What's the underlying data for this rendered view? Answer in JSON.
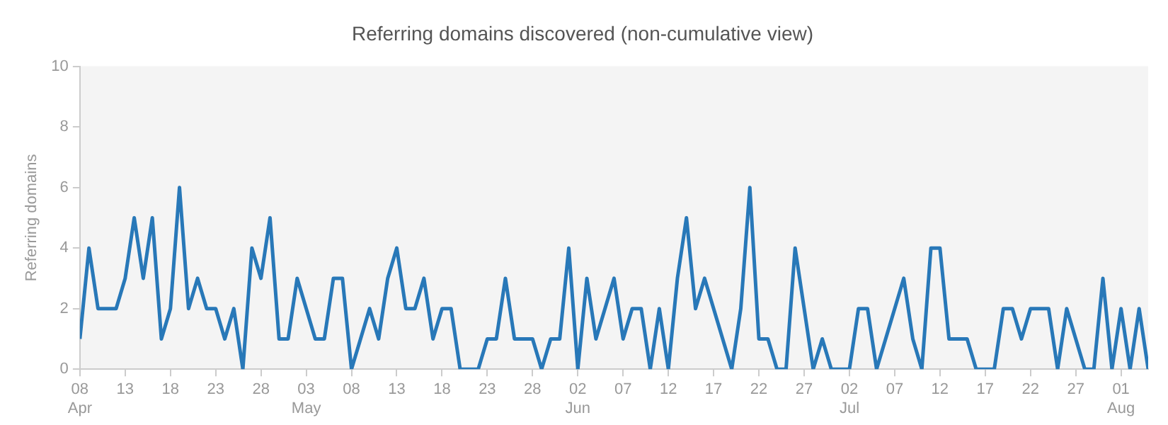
{
  "chart_data": {
    "type": "line",
    "title": "Referring domains discovered (non-cumulative view)",
    "ylabel": "Referring domains",
    "x": [
      "--04-08",
      "--04-09",
      "--04-10",
      "--04-11",
      "--04-12",
      "--04-13",
      "--04-14",
      "--04-15",
      "--04-16",
      "--04-17",
      "--04-18",
      "--04-19",
      "--04-20",
      "--04-21",
      "--04-22",
      "--04-23",
      "--04-24",
      "--04-25",
      "--04-26",
      "--04-27",
      "--04-28",
      "--04-29",
      "--04-30",
      "--05-01",
      "--05-02",
      "--05-03",
      "--05-04",
      "--05-05",
      "--05-06",
      "--05-07",
      "--05-08",
      "--05-09",
      "--05-10",
      "--05-11",
      "--05-12",
      "--05-13",
      "--05-14",
      "--05-15",
      "--05-16",
      "--05-17",
      "--05-18",
      "--05-19",
      "--05-20",
      "--05-21",
      "--05-22",
      "--05-23",
      "--05-24",
      "--05-25",
      "--05-26",
      "--05-27",
      "--05-28",
      "--05-29",
      "--05-30",
      "--05-31",
      "--06-01",
      "--06-02",
      "--06-03",
      "--06-04",
      "--06-05",
      "--06-06",
      "--06-07",
      "--06-08",
      "--06-09",
      "--06-10",
      "--06-11",
      "--06-12",
      "--06-13",
      "--06-14",
      "--06-15",
      "--06-16",
      "--06-17",
      "--06-18",
      "--06-19",
      "--06-20",
      "--06-21",
      "--06-22",
      "--06-23",
      "--06-24",
      "--06-25",
      "--06-26",
      "--06-27",
      "--06-28",
      "--06-29",
      "--06-30",
      "--07-01",
      "--07-02",
      "--07-03",
      "--07-04",
      "--07-05",
      "--07-06",
      "--07-07",
      "--07-08",
      "--07-09",
      "--07-10",
      "--07-11",
      "--07-12",
      "--07-13",
      "--07-14",
      "--07-15",
      "--07-16",
      "--07-17",
      "--07-18",
      "--07-19",
      "--07-20",
      "--07-21",
      "--07-22",
      "--07-23",
      "--07-24",
      "--07-25",
      "--07-26",
      "--07-27",
      "--07-28",
      "--07-29",
      "--07-30",
      "--07-31",
      "--08-01",
      "--08-02",
      "--08-03",
      "--08-04"
    ],
    "series": [
      {
        "color": "#2878b8",
        "values": [
          1,
          4,
          2,
          2,
          2,
          3,
          5,
          3,
          5,
          1,
          2,
          6,
          2,
          3,
          2,
          2,
          1,
          2,
          0,
          4,
          3,
          5,
          1,
          1,
          3,
          2,
          1,
          1,
          3,
          3,
          0,
          1,
          2,
          1,
          3,
          4,
          2,
          2,
          3,
          1,
          2,
          2,
          0,
          0,
          0,
          1,
          1,
          3,
          1,
          1,
          1,
          0,
          1,
          1,
          4,
          0,
          3,
          1,
          2,
          3,
          1,
          2,
          2,
          0,
          2,
          0,
          3,
          5,
          2,
          3,
          2,
          1,
          0,
          2,
          6,
          1,
          1,
          0,
          0,
          4,
          2,
          0,
          1,
          0,
          0,
          0,
          2,
          2,
          0,
          1,
          2,
          3,
          1,
          0,
          4,
          4,
          1,
          1,
          1,
          0,
          0,
          0,
          2,
          2,
          1,
          2,
          2,
          2,
          0,
          2,
          1,
          0,
          0,
          3,
          0,
          2,
          0,
          2,
          0
        ]
      }
    ],
    "xlim": [
      "--04-08",
      "--08-04"
    ],
    "xticks": [
      {
        "value": "--04-08",
        "label": "08 Apr"
      },
      {
        "value": "--04-13",
        "label": "13"
      },
      {
        "value": "--04-18",
        "label": "18"
      },
      {
        "value": "--04-23",
        "label": "23"
      },
      {
        "value": "--04-28",
        "label": "28"
      },
      {
        "value": "--05-03",
        "label": "03 May"
      },
      {
        "value": "--05-08",
        "label": "08"
      },
      {
        "value": "--05-13",
        "label": "13"
      },
      {
        "value": "--05-18",
        "label": "18"
      },
      {
        "value": "--05-23",
        "label": "23"
      },
      {
        "value": "--05-28",
        "label": "28"
      },
      {
        "value": "--06-02",
        "label": "02 Jun"
      },
      {
        "value": "--06-07",
        "label": "07"
      },
      {
        "value": "--06-12",
        "label": "12"
      },
      {
        "value": "--06-17",
        "label": "17"
      },
      {
        "value": "--06-22",
        "label": "22"
      },
      {
        "value": "--06-27",
        "label": "27"
      },
      {
        "value": "--07-02",
        "label": "02 Jul"
      },
      {
        "value": "--07-07",
        "label": "07"
      },
      {
        "value": "--07-12",
        "label": "12"
      },
      {
        "value": "--07-17",
        "label": "17"
      },
      {
        "value": "--07-22",
        "label": "22"
      },
      {
        "value": "--07-27",
        "label": "27"
      },
      {
        "value": "--08-01",
        "label": "01 Aug"
      }
    ],
    "ylim": [
      0,
      10
    ],
    "yticks": [
      0,
      2,
      4,
      6,
      8,
      10
    ],
    "grid": false,
    "legend": false,
    "marker": "none",
    "line_style": "solid"
  }
}
